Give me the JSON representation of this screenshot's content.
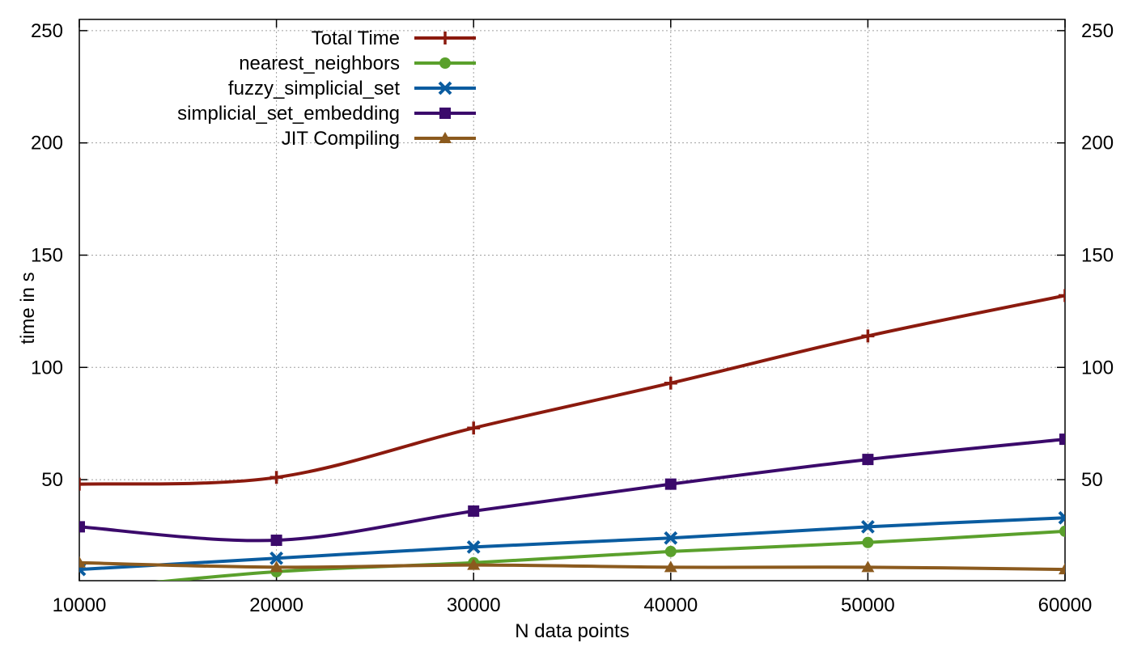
{
  "chart_data": {
    "type": "line",
    "title": "",
    "xlabel": "N data points",
    "ylabel": "time in s",
    "xlim": [
      10000,
      60000
    ],
    "ylim": [
      5,
      255
    ],
    "x_ticks": [
      10000,
      20000,
      30000,
      40000,
      50000,
      60000
    ],
    "y_ticks": [
      50,
      100,
      150,
      200,
      250
    ],
    "mirror_y_axis": true,
    "grid": true,
    "legend_position": "top-left",
    "x": [
      10000,
      20000,
      30000,
      40000,
      50000,
      60000
    ],
    "series": [
      {
        "name": "Total Time",
        "color": "#8b1a0e",
        "marker": "plus",
        "values": [
          48,
          51,
          73,
          93,
          114,
          132
        ]
      },
      {
        "name": "nearest_neighbors",
        "color": "#5aa02c",
        "marker": "circle",
        "values": [
          1,
          9,
          13,
          18,
          22,
          27
        ]
      },
      {
        "name": "fuzzy_simplicial_set",
        "color": "#0a5ca0",
        "marker": "x",
        "values": [
          10,
          15,
          20,
          24,
          29,
          33
        ]
      },
      {
        "name": "simplicial_set_embedding",
        "color": "#3b0a6b",
        "marker": "square",
        "values": [
          29,
          23,
          36,
          48,
          59,
          68
        ]
      },
      {
        "name": "JIT Compiling",
        "color": "#8b5a1e",
        "marker": "triangle",
        "values": [
          13,
          11,
          12,
          11,
          11,
          10
        ]
      }
    ]
  }
}
